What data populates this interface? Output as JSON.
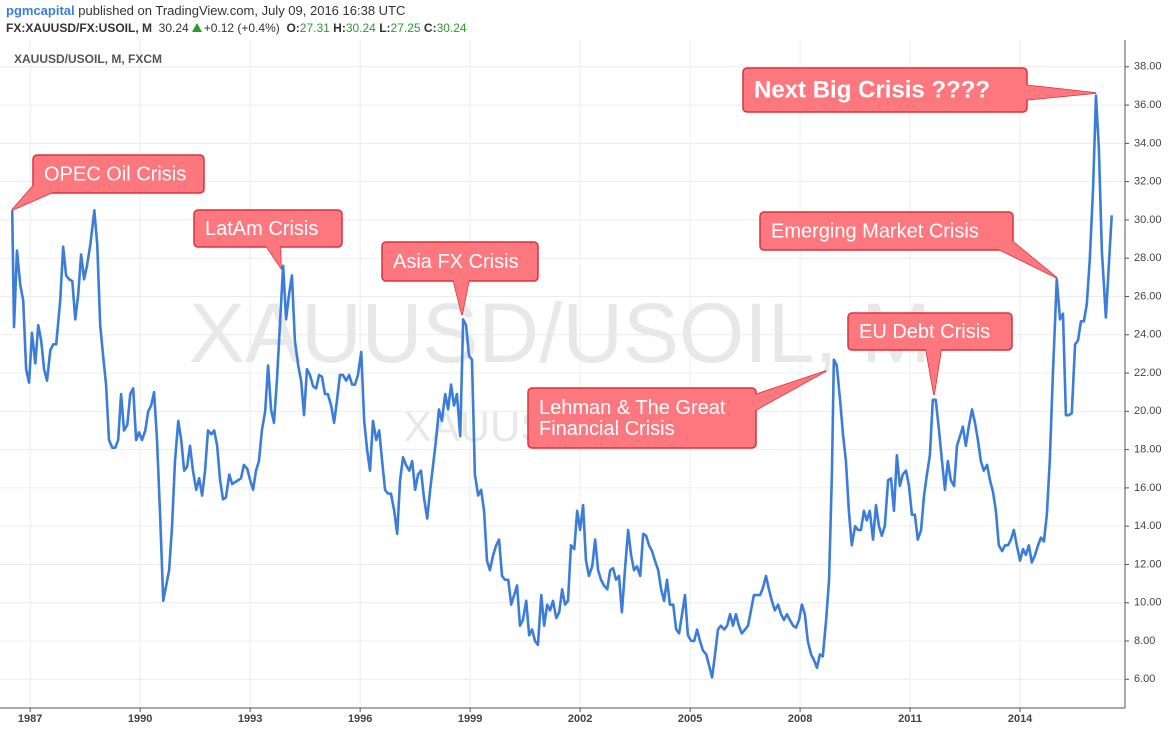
{
  "header": {
    "publisher": "pgmcapital",
    "published": "published on TradingView.com, July 09, 2016 16:38 UTC",
    "symbol": "FX:XAUUSD/FX:USOIL, M",
    "last": "30.24",
    "change": "+0.12 (+0.4%)",
    "ohlc": [
      {
        "label": "O:",
        "value": "27.31"
      },
      {
        "label": "H:",
        "value": "30.24"
      },
      {
        "label": "L:",
        "value": "27.25"
      },
      {
        "label": "C:",
        "value": "30.24"
      }
    ]
  },
  "chart_data": {
    "type": "line",
    "watermark": "XAUUSD/USOIL, M",
    "watermark_sub": "XAUUSD/USOIL",
    "x": [
      1986.51,
      1986.56,
      1986.64,
      1986.73,
      1986.81,
      1986.89,
      1986.97,
      1987.05,
      1987.14,
      1987.22,
      1987.3,
      1987.38,
      1987.46,
      1987.55,
      1987.63,
      1987.71,
      1987.82,
      1987.9,
      1987.98,
      1988.06,
      1988.15,
      1988.23,
      1988.31,
      1988.39,
      1988.47,
      1988.55,
      1988.64,
      1988.75,
      1988.83,
      1988.91,
      1988.99,
      1989.07,
      1989.15,
      1989.24,
      1989.32,
      1989.4,
      1989.48,
      1989.56,
      1989.65,
      1989.73,
      1989.81,
      1989.89,
      1989.97,
      1990.05,
      1990.14,
      1990.22,
      1990.3,
      1990.38,
      1990.46,
      1990.55,
      1990.63,
      1990.71,
      1990.79,
      1990.87,
      1990.95,
      1991.04,
      1991.12,
      1991.2,
      1991.28,
      1991.36,
      1991.44,
      1991.53,
      1991.61,
      1991.69,
      1991.77,
      1991.85,
      1991.94,
      1992.02,
      1992.1,
      1992.18,
      1992.26,
      1992.34,
      1992.43,
      1992.51,
      1992.59,
      1992.67,
      1992.75,
      1992.83,
      1992.92,
      1993.0,
      1993.08,
      1993.16,
      1993.24,
      1993.32,
      1993.41,
      1993.49,
      1993.57,
      1993.65,
      1993.73,
      1993.82,
      1993.9,
      1993.98,
      1994.06,
      1994.14,
      1994.22,
      1994.31,
      1994.39,
      1994.47,
      1994.55,
      1994.63,
      1994.72,
      1994.8,
      1994.88,
      1994.96,
      1995.04,
      1995.12,
      1995.21,
      1995.29,
      1995.37,
      1995.45,
      1995.53,
      1995.62,
      1995.7,
      1995.78,
      1995.86,
      1995.94,
      1996.03,
      1996.11,
      1996.19,
      1996.27,
      1996.35,
      1996.44,
      1996.52,
      1996.6,
      1996.68,
      1996.76,
      1996.84,
      1996.93,
      1997.01,
      1997.09,
      1997.17,
      1997.25,
      1997.34,
      1997.42,
      1997.5,
      1997.58,
      1997.66,
      1997.74,
      1997.83,
      1997.91,
      1997.99,
      1998.07,
      1998.15,
      1998.23,
      1998.32,
      1998.4,
      1998.48,
      1998.56,
      1998.64,
      1998.73,
      1998.81,
      1998.89,
      1998.97,
      1999.05,
      1999.13,
      1999.22,
      1999.3,
      1999.38,
      1999.46,
      1999.54,
      1999.63,
      1999.71,
      1999.79,
      1999.87,
      1999.95,
      2000.04,
      2000.12,
      2000.2,
      2000.28,
      2000.36,
      2000.44,
      2000.53,
      2000.61,
      2000.69,
      2000.77,
      2000.85,
      2000.94,
      2001.02,
      2001.1,
      2001.18,
      2001.26,
      2001.35,
      2001.43,
      2001.51,
      2001.59,
      2001.67,
      2001.75,
      2001.84,
      2001.92,
      2002.0,
      2002.08,
      2002.16,
      2002.24,
      2002.33,
      2002.41,
      2002.49,
      2002.57,
      2002.65,
      2002.74,
      2002.82,
      2002.9,
      2002.98,
      2003.06,
      2003.14,
      2003.23,
      2003.31,
      2003.39,
      2003.47,
      2003.55,
      2003.64,
      2003.72,
      2003.8,
      2003.88,
      2003.96,
      2004.04,
      2004.13,
      2004.21,
      2004.29,
      2004.37,
      2004.45,
      2004.54,
      2004.62,
      2004.7,
      2004.78,
      2004.86,
      2004.94,
      2005.03,
      2005.11,
      2005.19,
      2005.27,
      2005.35,
      2005.44,
      2005.52,
      2005.6,
      2005.68,
      2005.76,
      2005.84,
      2005.93,
      2006.01,
      2006.09,
      2006.17,
      2006.25,
      2006.33,
      2006.41,
      2006.5,
      2006.58,
      2006.66,
      2006.74,
      2006.82,
      2006.91,
      2006.99,
      2007.07,
      2007.15,
      2007.23,
      2007.31,
      2007.4,
      2007.48,
      2007.56,
      2007.64,
      2007.72,
      2007.81,
      2007.89,
      2007.97,
      2008.05,
      2008.13,
      2008.21,
      2008.3,
      2008.38,
      2008.46,
      2008.54,
      2008.62,
      2008.71,
      2008.79,
      2008.87,
      2008.92,
      2009.0,
      2009.09,
      2009.17,
      2009.25,
      2009.33,
      2009.41,
      2009.5,
      2009.58,
      2009.66,
      2009.74,
      2009.82,
      2009.9,
      2009.99,
      2010.07,
      2010.15,
      2010.23,
      2010.31,
      2010.4,
      2010.48,
      2010.56,
      2010.64,
      2010.72,
      2010.8,
      2010.89,
      2010.97,
      2011.05,
      2011.13,
      2011.21,
      2011.3,
      2011.38,
      2011.46,
      2011.54,
      2011.62,
      2011.7,
      2011.79,
      2011.87,
      2011.95,
      2012.03,
      2012.11,
      2012.2,
      2012.28,
      2012.36,
      2012.44,
      2012.52,
      2012.6,
      2012.69,
      2012.77,
      2012.85,
      2012.93,
      2013.01,
      2013.1,
      2013.18,
      2013.26,
      2013.34,
      2013.42,
      2013.51,
      2013.59,
      2013.67,
      2013.75,
      2013.83,
      2013.91,
      2014.0,
      2014.08,
      2014.16,
      2014.24,
      2014.32,
      2014.41,
      2014.49,
      2014.57,
      2014.65,
      2014.73,
      2014.81,
      2014.9,
      2014.95,
      2015.0,
      2015.09,
      2015.17,
      2015.25,
      2015.33,
      2015.41,
      2015.5,
      2015.58,
      2015.66,
      2015.74,
      2015.82,
      2015.9,
      2015.99,
      2016.07,
      2016.15,
      2016.23,
      2016.34,
      2016.42,
      2016.5
    ],
    "series": [
      {
        "name": "XAUUSD/USOIL, M, FXCM",
        "color": "#3b7dd8",
        "values": [
          30.5,
          24.4,
          28.4,
          26.6,
          25.8,
          22.2,
          21.5,
          24.1,
          22.5,
          24.5,
          23.7,
          22.2,
          21.6,
          23.2,
          23.5,
          23.5,
          25.8,
          28.6,
          27.1,
          26.9,
          26.8,
          24.8,
          26.1,
          28.2,
          26.9,
          27.6,
          28.7,
          30.5,
          28.7,
          24.5,
          22.9,
          21.4,
          18.5,
          18.1,
          18.1,
          18.5,
          20.9,
          19.0,
          19.3,
          20.9,
          21.2,
          18.5,
          18.9,
          18.5,
          19.0,
          20.0,
          20.3,
          21.0,
          18.5,
          14.3,
          10.1,
          10.9,
          11.7,
          14.0,
          17.4,
          19.5,
          18.5,
          16.9,
          17.1,
          18.2,
          16.9,
          15.9,
          16.5,
          15.6,
          16.9,
          19.0,
          18.8,
          19.0,
          18.2,
          16.4,
          15.4,
          15.5,
          16.7,
          16.2,
          16.3,
          16.4,
          16.5,
          17.2,
          17.0,
          16.4,
          15.9,
          16.9,
          17.4,
          19.0,
          20.0,
          22.4,
          20.1,
          19.4,
          21.6,
          24.8,
          27.6,
          24.8,
          26.1,
          27.1,
          23.7,
          22.4,
          21.6,
          19.8,
          22.2,
          21.9,
          21.3,
          21.2,
          21.9,
          21.8,
          20.9,
          20.9,
          20.3,
          19.4,
          20.6,
          21.9,
          21.9,
          21.6,
          21.9,
          21.4,
          21.4,
          21.9,
          23.1,
          19.5,
          18.0,
          16.9,
          19.5,
          18.5,
          19.0,
          17.4,
          15.9,
          15.7,
          15.7,
          14.8,
          13.6,
          16.4,
          17.6,
          17.2,
          16.9,
          17.4,
          15.9,
          16.7,
          16.9,
          15.5,
          14.4,
          15.9,
          17.2,
          18.5,
          20.1,
          19.5,
          20.9,
          20.1,
          21.4,
          20.3,
          20.9,
          18.7,
          24.8,
          24.5,
          22.9,
          22.7,
          16.7,
          15.6,
          15.9,
          14.8,
          12.2,
          11.7,
          12.5,
          13.0,
          13.3,
          11.4,
          11.2,
          11.2,
          9.9,
          10.4,
          10.9,
          8.8,
          9.1,
          10.1,
          8.3,
          8.6,
          8.0,
          7.8,
          10.4,
          8.8,
          9.9,
          9.6,
          10.1,
          9.2,
          9.5,
          10.7,
          9.9,
          10.1,
          13.0,
          12.8,
          14.8,
          13.8,
          15.1,
          12.2,
          11.4,
          11.9,
          13.3,
          11.7,
          11.2,
          10.9,
          10.7,
          11.7,
          11.8,
          11.2,
          11.4,
          9.5,
          11.9,
          13.8,
          12.5,
          11.7,
          11.9,
          11.4,
          13.6,
          13.5,
          13.0,
          12.7,
          12.2,
          11.7,
          10.7,
          10.1,
          11.2,
          9.9,
          9.9,
          8.6,
          8.4,
          9.4,
          10.4,
          8.3,
          8.0,
          8.0,
          8.6,
          8.0,
          7.5,
          7.3,
          6.7,
          6.1,
          7.3,
          8.6,
          8.8,
          8.6,
          8.8,
          9.4,
          8.8,
          9.4,
          8.8,
          8.4,
          8.6,
          8.8,
          9.6,
          10.4,
          10.4,
          10.4,
          10.8,
          11.4,
          10.7,
          10.1,
          9.6,
          9.9,
          9.4,
          9.1,
          9.4,
          9.1,
          8.8,
          8.7,
          9.1,
          9.9,
          9.4,
          8.0,
          7.3,
          7.0,
          6.6,
          7.3,
          7.2,
          9.1,
          11.2,
          16.9,
          22.7,
          22.4,
          20.6,
          18.8,
          17.4,
          14.8,
          13.0,
          14.0,
          13.8,
          13.8,
          14.8,
          14.3,
          14.8,
          13.3,
          15.1,
          14.0,
          13.5,
          14.0,
          16.4,
          16.5,
          14.8,
          17.7,
          16.1,
          16.7,
          16.9,
          16.1,
          14.6,
          14.6,
          13.3,
          13.8,
          15.6,
          16.7,
          17.7,
          20.6,
          20.6,
          19.0,
          17.4,
          15.9,
          17.4,
          16.4,
          16.1,
          18.2,
          18.7,
          19.2,
          18.2,
          19.2,
          20.1,
          19.4,
          18.5,
          17.4,
          16.9,
          17.2,
          16.4,
          15.8,
          14.8,
          13.0,
          12.7,
          13.0,
          13.0,
          13.3,
          13.8,
          13.0,
          12.2,
          12.8,
          12.5,
          13.0,
          12.1,
          12.5,
          13.0,
          13.4,
          13.2,
          14.6,
          17.4,
          22.2,
          24.5,
          26.9,
          24.8,
          25.1,
          19.8,
          19.8,
          19.9,
          23.5,
          23.7,
          24.7,
          24.7,
          25.6,
          27.9,
          31.6,
          36.5,
          33.7,
          28.4,
          24.9,
          27.6,
          30.24
        ]
      }
    ],
    "xlim": [
      1986.45,
      2016.78
    ],
    "xticks": [
      1987,
      1990,
      1993,
      1996,
      1999,
      2002,
      2005,
      2008,
      2011,
      2014
    ],
    "ylim": [
      4.5,
      39.4
    ],
    "yticks": [
      {
        "value": 6,
        "label": "6.00"
      },
      {
        "value": 8,
        "label": "8.00"
      },
      {
        "value": 10,
        "label": "10.00"
      },
      {
        "value": 12,
        "label": "12.00"
      },
      {
        "value": 14,
        "label": "14.00"
      },
      {
        "value": 16,
        "label": "16.00"
      },
      {
        "value": 18,
        "label": "18.00"
      },
      {
        "value": 20,
        "label": "20.00"
      },
      {
        "value": 22,
        "label": "22.00"
      },
      {
        "value": 24,
        "label": "24.00"
      },
      {
        "value": 26,
        "label": "26.00"
      },
      {
        "value": 28,
        "label": "28.00"
      },
      {
        "value": 30,
        "label": "30.00"
      },
      {
        "value": 32,
        "label": "32.00"
      },
      {
        "value": 34,
        "label": "34.00"
      },
      {
        "value": 36,
        "label": "36.00"
      },
      {
        "value": 38,
        "label": "38.00"
      }
    ],
    "grid": true,
    "annotations": [
      {
        "lines": [
          "OPEC Oil Crisis"
        ]
      },
      {
        "lines": [
          "LatAm Crisis"
        ]
      },
      {
        "lines": [
          "Asia FX Crisis"
        ]
      },
      {
        "lines": [
          "Lehman & The Great",
          "Financial Crisis"
        ]
      },
      {
        "lines": [
          "EU Debt Crisis"
        ]
      },
      {
        "lines": [
          "Emerging Market Crisis"
        ]
      },
      {
        "lines": [
          "Next Big Crisis ????"
        ]
      }
    ]
  }
}
